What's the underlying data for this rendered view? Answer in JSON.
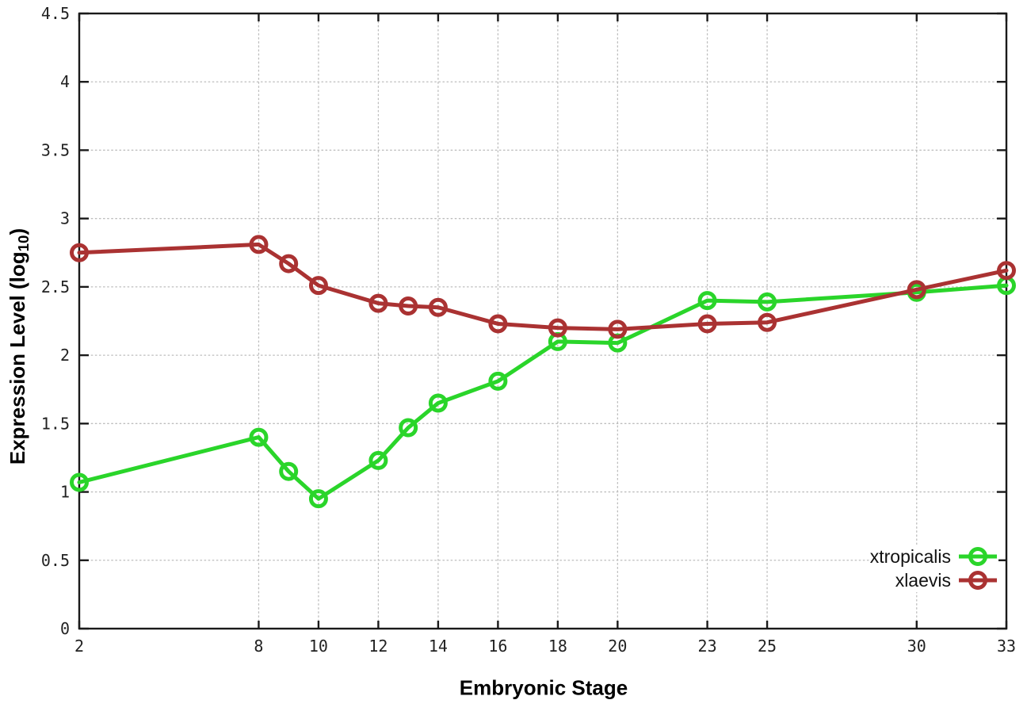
{
  "chart_data": {
    "type": "line",
    "title": "",
    "xlabel": "Embryonic Stage",
    "ylabel": "Expression Level (log10)",
    "ylabel_parts": {
      "prefix": "Expression Level (log",
      "sub": "10",
      "suffix": ")"
    },
    "x": [
      2,
      8,
      9,
      10,
      12,
      13,
      14,
      16,
      18,
      20,
      23,
      25,
      30,
      33
    ],
    "series": [
      {
        "name": "xtropicalis",
        "color": "#2ad52a",
        "values": [
          1.07,
          1.4,
          1.15,
          0.95,
          1.23,
          1.47,
          1.65,
          1.81,
          2.1,
          2.09,
          2.4,
          2.39,
          2.46,
          2.51
        ]
      },
      {
        "name": "xlaevis",
        "color": "#aa3232",
        "values": [
          2.75,
          2.81,
          2.67,
          2.51,
          2.38,
          2.36,
          2.35,
          2.23,
          2.2,
          2.19,
          2.23,
          2.24,
          2.48,
          2.62
        ]
      }
    ],
    "xlim": [
      2,
      33
    ],
    "ylim": [
      0,
      4.5
    ],
    "xticks": [
      2,
      8,
      10,
      12,
      14,
      16,
      18,
      20,
      23,
      25,
      30,
      33
    ],
    "ytick_labels": [
      "0",
      "0.5",
      "1",
      "1.5",
      "2",
      "2.5",
      "3",
      "3.5",
      "4",
      "4.5"
    ],
    "grid": true,
    "grid_style": "dotted",
    "legend_position": "inside-bottom-right",
    "legend_entries": [
      "xtropicalis",
      "xlaevis"
    ]
  },
  "colors": {
    "background": "#ffffff",
    "border": "#1a1a1a",
    "grid": "#bdbdbd",
    "tick_text": "#222222",
    "series_green": "#2ad52a",
    "series_red": "#aa3232"
  }
}
